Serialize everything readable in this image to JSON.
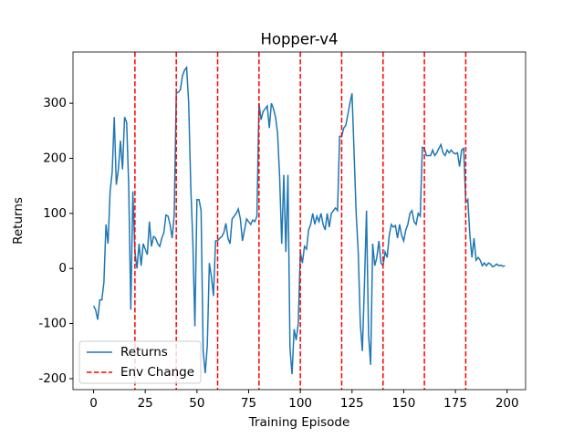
{
  "chart_data": {
    "type": "line",
    "title": "Hopper-v4",
    "xlabel": "Training Episode",
    "ylabel": "Returns",
    "x": [
      0,
      1,
      2,
      3,
      4,
      5,
      6,
      7,
      8,
      9,
      10,
      11,
      12,
      13,
      14,
      15,
      16,
      17,
      18,
      19,
      20,
      21,
      22,
      23,
      24,
      25,
      26,
      27,
      28,
      29,
      30,
      31,
      32,
      33,
      34,
      35,
      36,
      37,
      38,
      39,
      40,
      41,
      42,
      43,
      44,
      45,
      46,
      47,
      48,
      49,
      50,
      51,
      52,
      53,
      54,
      55,
      56,
      57,
      58,
      59,
      60,
      61,
      62,
      63,
      64,
      65,
      66,
      67,
      68,
      69,
      70,
      71,
      72,
      73,
      74,
      75,
      76,
      77,
      78,
      79,
      80,
      81,
      82,
      83,
      84,
      85,
      86,
      87,
      88,
      89,
      90,
      91,
      92,
      93,
      94,
      95,
      96,
      97,
      98,
      99,
      100,
      101,
      102,
      103,
      104,
      105,
      106,
      107,
      108,
      109,
      110,
      111,
      112,
      113,
      114,
      115,
      116,
      117,
      118,
      119,
      120,
      121,
      122,
      123,
      124,
      125,
      126,
      127,
      128,
      129,
      130,
      131,
      132,
      133,
      134,
      135,
      136,
      137,
      138,
      139,
      140,
      141,
      142,
      143,
      144,
      145,
      146,
      147,
      148,
      149,
      150,
      151,
      152,
      153,
      154,
      155,
      156,
      157,
      158,
      159,
      160,
      161,
      162,
      163,
      164,
      165,
      166,
      167,
      168,
      169,
      170,
      171,
      172,
      173,
      174,
      175,
      176,
      177,
      178,
      179,
      180,
      181,
      182,
      183,
      184,
      185,
      186,
      187,
      188,
      189,
      190,
      191,
      192,
      193,
      194,
      195,
      196,
      197,
      198,
      199
    ],
    "series": [
      {
        "name": "Returns",
        "color": "#1f77b4",
        "values": [
          -68,
          -75,
          -93,
          -57,
          -57,
          -25,
          80,
          45,
          140,
          175,
          275,
          152,
          180,
          232,
          180,
          275,
          265,
          150,
          -75,
          140,
          30,
          0,
          45,
          5,
          45,
          35,
          25,
          85,
          40,
          58,
          55,
          45,
          40,
          55,
          65,
          97,
          95,
          80,
          55,
          97,
          318,
          320,
          325,
          350,
          360,
          365,
          300,
          150,
          50,
          -105,
          125,
          125,
          105,
          -150,
          -190,
          -140,
          10,
          -15,
          -50,
          50,
          50,
          55,
          58,
          65,
          82,
          55,
          45,
          90,
          95,
          100,
          108,
          90,
          50,
          70,
          90,
          85,
          80,
          88,
          85,
          95,
          300,
          270,
          285,
          290,
          295,
          255,
          300,
          290,
          275,
          245,
          165,
          45,
          170,
          30,
          170,
          -145,
          -192,
          -110,
          -130,
          -100,
          30,
          10,
          40,
          35,
          70,
          80,
          100,
          80,
          95,
          85,
          100,
          80,
          70,
          100,
          75,
          100,
          105,
          110,
          105,
          240,
          240,
          255,
          260,
          280,
          300,
          318,
          210,
          100,
          30,
          -100,
          -150,
          -30,
          105,
          -120,
          -175,
          45,
          5,
          20,
          50,
          10,
          5,
          30,
          20,
          60,
          80,
          75,
          78,
          55,
          80,
          60,
          50,
          70,
          80,
          100,
          105,
          85,
          80,
          100,
          95,
          220,
          218,
          205,
          205,
          205,
          215,
          205,
          210,
          218,
          225,
          210,
          205,
          215,
          210,
          215,
          210,
          208,
          210,
          185,
          215,
          218,
          120,
          125,
          60,
          20,
          55,
          15,
          20,
          15,
          5,
          10,
          5,
          10,
          8,
          3,
          5,
          8,
          5,
          6,
          4,
          5
        ]
      }
    ],
    "env_change": {
      "name": "Env Change",
      "color": "#ff0000",
      "x": [
        20,
        40,
        60,
        80,
        100,
        120,
        140,
        160,
        180
      ]
    },
    "xlim": [
      -9.95,
      208.95
    ],
    "xticks": [
      0,
      25,
      50,
      75,
      100,
      125,
      150,
      175,
      200
    ],
    "ylim": [
      -220,
      393
    ],
    "yticks": [
      -200,
      -100,
      0,
      100,
      200,
      300
    ],
    "legend": "lower left"
  }
}
